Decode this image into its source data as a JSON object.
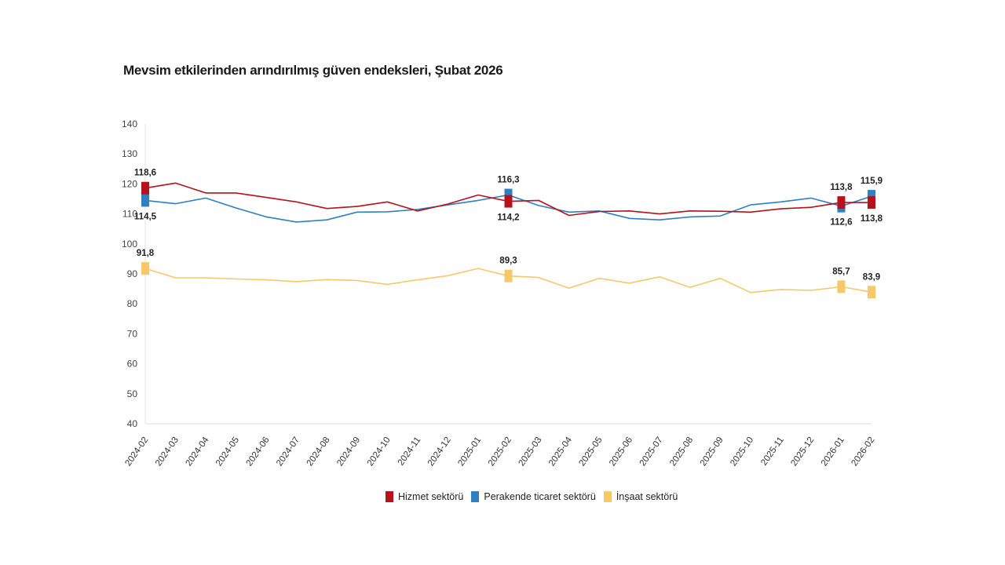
{
  "chart_data": {
    "type": "line",
    "title": "Mevsim etkilerinden arındırılmış güven endeksleri, Şubat 2026",
    "xlabel": "",
    "ylabel": "",
    "ylim": [
      40,
      140
    ],
    "yticks": [
      140,
      130,
      120,
      110,
      100,
      90,
      80,
      70,
      60,
      50,
      40
    ],
    "grid": false,
    "legend_position": "bottom",
    "categories": [
      "2024-02",
      "2024-03",
      "2024-04",
      "2024-05",
      "2024-06",
      "2024-07",
      "2024-08",
      "2024-09",
      "2024-10",
      "2024-11",
      "2024-12",
      "2025-01",
      "2025-02",
      "2025-03",
      "2025-04",
      "2025-05",
      "2025-06",
      "2025-07",
      "2025-08",
      "2025-09",
      "2025-10",
      "2025-11",
      "2025-12",
      "2026-01",
      "2026-02"
    ],
    "series": [
      {
        "name": "Hizmet sektörü",
        "color": "#b5121b",
        "values": [
          118.6,
          120.3,
          117.0,
          117.0,
          115.5,
          114.0,
          111.8,
          112.5,
          114.0,
          111.0,
          113.3,
          116.3,
          114.2,
          114.5,
          109.5,
          110.8,
          111.0,
          110.0,
          111.0,
          110.9,
          110.6,
          111.7,
          112.2,
          113.8,
          113.8
        ],
        "labeled_points": [
          {
            "index": 0,
            "label": "118,6",
            "pos": "above"
          },
          {
            "index": 12,
            "label": "114,2",
            "pos": "below"
          },
          {
            "index": 23,
            "label": "113,8",
            "pos": "above"
          },
          {
            "index": 24,
            "label": "113,8",
            "pos": "below"
          }
        ]
      },
      {
        "name": "Perakende ticaret sektörü",
        "color": "#2f7fc1",
        "values": [
          114.5,
          113.4,
          115.3,
          112.0,
          109.0,
          107.3,
          108.0,
          110.6,
          110.7,
          111.5,
          113.0,
          114.5,
          116.3,
          112.8,
          110.6,
          111.0,
          108.5,
          108.0,
          109.0,
          109.3,
          113.0,
          114.0,
          115.3,
          112.6,
          115.9
        ],
        "labeled_points": [
          {
            "index": 0,
            "label": "114,5",
            "pos": "below"
          },
          {
            "index": 12,
            "label": "116,3",
            "pos": "above"
          },
          {
            "index": 23,
            "label": "112,6",
            "pos": "below"
          },
          {
            "index": 24,
            "label": "115,9",
            "pos": "above"
          }
        ]
      },
      {
        "name": "İnşaat sektörü",
        "color": "#f5c96a",
        "values": [
          91.8,
          88.7,
          88.7,
          88.3,
          88.0,
          87.4,
          88.1,
          87.8,
          86.5,
          88.0,
          89.4,
          91.8,
          89.3,
          88.8,
          85.2,
          88.5,
          86.9,
          89.0,
          85.5,
          88.5,
          83.8,
          84.8,
          84.5,
          85.7,
          83.9
        ],
        "labeled_points": [
          {
            "index": 0,
            "label": "91,8",
            "pos": "above"
          },
          {
            "index": 12,
            "label": "89,3",
            "pos": "above"
          },
          {
            "index": 23,
            "label": "85,7",
            "pos": "above"
          },
          {
            "index": 24,
            "label": "83,9",
            "pos": "above"
          }
        ]
      }
    ]
  }
}
